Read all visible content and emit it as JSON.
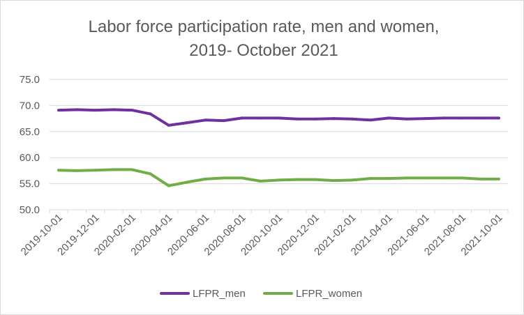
{
  "chart_data": {
    "type": "line",
    "title_lines": [
      "Labor force participation rate, men and women,",
      "2019- October 2021"
    ],
    "xlabel": "",
    "ylabel": "",
    "ylim": [
      50.0,
      75.0
    ],
    "yticks": [
      "50.0",
      "55.0",
      "60.0",
      "65.0",
      "70.0",
      "75.0"
    ],
    "grid": true,
    "legend_position": "bottom",
    "x": [
      "2019-10-01",
      "2019-11-01",
      "2019-12-01",
      "2020-01-01",
      "2020-02-01",
      "2020-03-01",
      "2020-04-01",
      "2020-05-01",
      "2020-06-01",
      "2020-07-01",
      "2020-08-01",
      "2020-09-01",
      "2020-10-01",
      "2020-11-01",
      "2020-12-01",
      "2021-01-01",
      "2021-02-01",
      "2021-03-01",
      "2021-04-01",
      "2021-05-01",
      "2021-06-01",
      "2021-07-01",
      "2021-08-01",
      "2021-09-01",
      "2021-10-01"
    ],
    "xtick_labels": [
      "2019-10-01",
      "2019-12-01",
      "2020-02-01",
      "2020-04-01",
      "2020-06-01",
      "2020-08-01",
      "2020-10-01",
      "2020-12-01",
      "2021-02-01",
      "2021-04-01",
      "2021-06-01",
      "2021-08-01",
      "2021-10-01"
    ],
    "series": [
      {
        "name": "LFPR_men",
        "color": "#7030a0",
        "values": [
          69.1,
          69.2,
          69.1,
          69.2,
          69.1,
          68.4,
          66.2,
          66.7,
          67.2,
          67.1,
          67.6,
          67.6,
          67.6,
          67.4,
          67.4,
          67.5,
          67.4,
          67.2,
          67.6,
          67.4,
          67.5,
          67.6,
          67.6,
          67.6,
          67.6
        ]
      },
      {
        "name": "LFPR_women",
        "color": "#70ad47",
        "values": [
          57.6,
          57.5,
          57.6,
          57.7,
          57.7,
          56.9,
          54.6,
          55.3,
          55.9,
          56.1,
          56.1,
          55.5,
          55.7,
          55.8,
          55.8,
          55.6,
          55.7,
          56.0,
          56.0,
          56.1,
          56.1,
          56.1,
          56.1,
          55.9,
          55.9
        ]
      }
    ]
  }
}
